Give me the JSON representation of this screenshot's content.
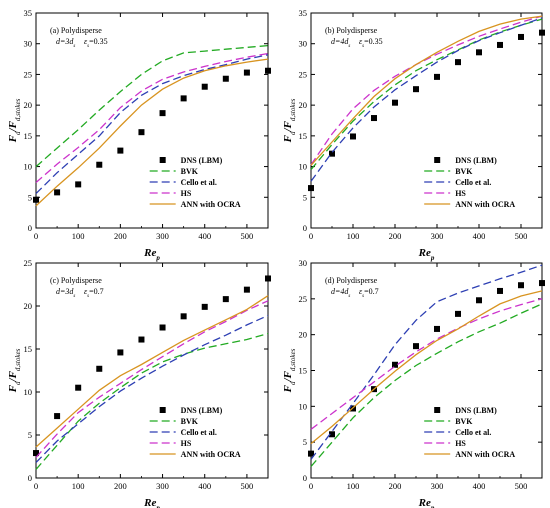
{
  "figure": {
    "ylabel_main": "F",
    "ylabel_sub": "d",
    "ylabel_sep": "/",
    "ylabel_main2": "F",
    "ylabel_sub2": "d,stokes",
    "xlabel_main": "Re",
    "xlabel_sub": "p"
  },
  "chart_data": [
    {
      "type": "line",
      "panel_label": "(a) Polydisperse",
      "param1_pre": "d=3d",
      "param1_sub": "s",
      "param2_pre": "ε",
      "param2_sub": "s",
      "param2_post": "=0.35",
      "xlim": [
        0,
        550
      ],
      "ylim": [
        0,
        35
      ],
      "xticks": [
        0,
        100,
        200,
        300,
        400,
        500
      ],
      "yticks": [
        0,
        5,
        10,
        15,
        20,
        25,
        30,
        35
      ],
      "legend_position": "bottom-right",
      "series": [
        {
          "name": "DNS (LBM)",
          "kind": "scatter",
          "color": "#000000",
          "x": [
            0,
            50,
            100,
            150,
            200,
            250,
            300,
            350,
            400,
            450,
            500,
            550
          ],
          "y": [
            4.6,
            5.8,
            7.1,
            10.3,
            12.6,
            15.6,
            18.7,
            21.1,
            23.0,
            24.3,
            25.3,
            25.6
          ]
        },
        {
          "name": "BVK",
          "kind": "line",
          "color": "#22aa22",
          "dash": "8,4",
          "x": [
            0,
            50,
            100,
            150,
            200,
            250,
            300,
            350,
            400,
            450,
            500,
            550
          ],
          "y": [
            10.0,
            13.0,
            16.0,
            19.2,
            22.2,
            25.0,
            27.2,
            28.5,
            28.8,
            29.1,
            29.4,
            29.7
          ]
        },
        {
          "name": "Cello et al.",
          "kind": "line",
          "color": "#2d3fb3",
          "dash": "8,4",
          "x": [
            0,
            50,
            100,
            150,
            200,
            250,
            300,
            350,
            400,
            450,
            500,
            550
          ],
          "y": [
            5.6,
            9.0,
            12.0,
            15.0,
            18.8,
            21.6,
            23.5,
            24.8,
            25.8,
            26.6,
            27.5,
            28.2
          ]
        },
        {
          "name": "HS",
          "kind": "line",
          "color": "#cc33cc",
          "dash": "8,4",
          "x": [
            0,
            50,
            100,
            150,
            200,
            250,
            300,
            350,
            400,
            450,
            500,
            550
          ],
          "y": [
            7.4,
            10.4,
            13.1,
            16.0,
            19.6,
            22.3,
            24.2,
            25.4,
            26.3,
            27.1,
            27.8,
            28.4
          ]
        },
        {
          "name": "ANN with OCRA",
          "kind": "line",
          "color": "#d89420",
          "dash": "",
          "x": [
            0,
            50,
            100,
            150,
            200,
            250,
            300,
            350,
            400,
            450,
            500,
            550
          ],
          "y": [
            3.6,
            6.8,
            9.8,
            13.0,
            16.6,
            20.0,
            22.6,
            24.4,
            25.6,
            26.4,
            27.0,
            27.5
          ]
        }
      ]
    },
    {
      "type": "line",
      "panel_label": "(b) Polydisperse",
      "param1_pre": "d=4d",
      "param1_sub": "s",
      "param2_pre": "ε",
      "param2_sub": "s",
      "param2_post": "=0.35",
      "xlim": [
        0,
        550
      ],
      "ylim": [
        0,
        35
      ],
      "xticks": [
        0,
        100,
        200,
        300,
        400,
        500
      ],
      "yticks": [
        0,
        5,
        10,
        15,
        20,
        25,
        30,
        35
      ],
      "legend_position": "bottom-right",
      "series": [
        {
          "name": "DNS (LBM)",
          "kind": "scatter",
          "color": "#000000",
          "x": [
            0,
            50,
            100,
            150,
            200,
            250,
            300,
            350,
            400,
            450,
            500,
            550
          ],
          "y": [
            6.5,
            12.1,
            14.9,
            17.9,
            20.4,
            22.6,
            24.6,
            27.0,
            28.6,
            29.8,
            31.1,
            31.8
          ]
        },
        {
          "name": "BVK",
          "kind": "line",
          "color": "#22aa22",
          "dash": "8,4",
          "x": [
            0,
            50,
            100,
            150,
            200,
            250,
            300,
            350,
            400,
            450,
            500,
            550
          ],
          "y": [
            9.5,
            13.6,
            17.4,
            20.6,
            23.3,
            25.6,
            27.4,
            29.0,
            30.6,
            31.9,
            33.0,
            34.0
          ]
        },
        {
          "name": "Cello et al.",
          "kind": "line",
          "color": "#2d3fb3",
          "dash": "8,4",
          "x": [
            0,
            50,
            100,
            150,
            200,
            250,
            300,
            350,
            400,
            450,
            500,
            550
          ],
          "y": [
            7.6,
            12.3,
            16.3,
            19.7,
            22.5,
            24.8,
            27.0,
            28.9,
            30.5,
            31.8,
            33.0,
            34.2
          ]
        },
        {
          "name": "HS",
          "kind": "line",
          "color": "#cc33cc",
          "dash": "8,4",
          "x": [
            0,
            50,
            100,
            150,
            200,
            250,
            300,
            350,
            400,
            450,
            500,
            550
          ],
          "y": [
            10.3,
            15.3,
            19.4,
            22.4,
            24.7,
            26.6,
            28.3,
            29.8,
            31.2,
            32.4,
            33.5,
            34.5
          ]
        },
        {
          "name": "ANN with OCRA",
          "kind": "line",
          "color": "#d89420",
          "dash": "",
          "x": [
            0,
            50,
            100,
            150,
            200,
            250,
            300,
            350,
            400,
            450,
            500,
            550
          ],
          "y": [
            10.2,
            14.0,
            17.8,
            21.4,
            24.3,
            26.6,
            28.6,
            30.4,
            32.0,
            33.2,
            34.0,
            34.5
          ]
        }
      ]
    },
    {
      "type": "line",
      "panel_label": "(c) Polydisperse",
      "param1_pre": "d=3d",
      "param1_sub": "s",
      "param2_pre": "ε",
      "param2_sub": "s",
      "param2_post": "=0.7",
      "xlim": [
        0,
        550
      ],
      "ylim": [
        0,
        25
      ],
      "xticks": [
        0,
        100,
        200,
        300,
        400,
        500
      ],
      "yticks": [
        0,
        5,
        10,
        15,
        20,
        25
      ],
      "legend_position": "bottom-right",
      "series": [
        {
          "name": "DNS (LBM)",
          "kind": "scatter",
          "color": "#000000",
          "x": [
            0,
            50,
            100,
            150,
            200,
            250,
            300,
            350,
            400,
            450,
            500,
            550
          ],
          "y": [
            2.9,
            7.2,
            10.5,
            12.7,
            14.6,
            16.1,
            17.5,
            18.8,
            19.9,
            20.8,
            21.9,
            23.2
          ]
        },
        {
          "name": "BVK",
          "kind": "line",
          "color": "#22aa22",
          "dash": "8,4",
          "x": [
            0,
            50,
            100,
            150,
            200,
            250,
            300,
            350,
            400,
            450,
            500,
            550
          ],
          "y": [
            1.0,
            3.8,
            6.6,
            8.7,
            10.5,
            12.2,
            13.5,
            14.4,
            15.1,
            15.6,
            16.1,
            16.8
          ]
        },
        {
          "name": "Cello et al.",
          "kind": "line",
          "color": "#2d3fb3",
          "dash": "8,4",
          "x": [
            0,
            50,
            100,
            150,
            200,
            250,
            300,
            350,
            400,
            450,
            500,
            550
          ],
          "y": [
            1.8,
            4.3,
            6.3,
            8.3,
            10.1,
            11.6,
            13.0,
            14.3,
            15.5,
            16.6,
            17.8,
            18.9
          ]
        },
        {
          "name": "HS",
          "kind": "line",
          "color": "#cc33cc",
          "dash": "8,4",
          "x": [
            0,
            50,
            100,
            150,
            200,
            250,
            300,
            350,
            400,
            450,
            500,
            550
          ],
          "y": [
            2.4,
            5.1,
            7.6,
            9.4,
            11.0,
            12.6,
            14.1,
            15.6,
            17.0,
            18.2,
            19.5,
            20.6
          ]
        },
        {
          "name": "ANN with OCRA",
          "kind": "line",
          "color": "#d89420",
          "dash": "",
          "x": [
            0,
            50,
            100,
            150,
            200,
            250,
            300,
            350,
            400,
            450,
            500,
            550
          ],
          "y": [
            3.6,
            5.8,
            8.0,
            10.2,
            11.9,
            13.2,
            14.6,
            16.0,
            17.2,
            18.4,
            19.6,
            21.2
          ]
        }
      ]
    },
    {
      "type": "line",
      "panel_label": "(d) Polydisperse",
      "param1_pre": "d=4d",
      "param1_sub": "s",
      "param2_pre": "ε",
      "param2_sub": "s",
      "param2_post": "=0.7",
      "xlim": [
        0,
        550
      ],
      "ylim": [
        0,
        30
      ],
      "xticks": [
        0,
        100,
        200,
        300,
        400,
        500
      ],
      "yticks": [
        0,
        5,
        10,
        15,
        20,
        25,
        30
      ],
      "legend_position": "bottom-right",
      "series": [
        {
          "name": "DNS (LBM)",
          "kind": "scatter",
          "color": "#000000",
          "x": [
            0,
            50,
            100,
            150,
            200,
            250,
            300,
            350,
            400,
            450,
            500,
            550
          ],
          "y": [
            3.4,
            6.1,
            9.7,
            12.4,
            15.8,
            18.4,
            20.8,
            22.9,
            24.8,
            26.1,
            26.9,
            27.2
          ]
        },
        {
          "name": "BVK",
          "kind": "line",
          "color": "#22aa22",
          "dash": "8,4",
          "x": [
            0,
            50,
            100,
            150,
            200,
            250,
            300,
            350,
            400,
            450,
            500,
            550
          ],
          "y": [
            1.6,
            5.0,
            8.4,
            11.2,
            13.6,
            15.7,
            17.4,
            19.0,
            20.4,
            21.6,
            23.0,
            24.3
          ]
        },
        {
          "name": "Cello et al.",
          "kind": "line",
          "color": "#2d3fb3",
          "dash": "8,4",
          "x": [
            0,
            50,
            100,
            150,
            200,
            250,
            300,
            350,
            400,
            450,
            500,
            550
          ],
          "y": [
            2.6,
            6.5,
            10.4,
            14.4,
            18.6,
            22.0,
            24.6,
            25.8,
            26.8,
            27.8,
            28.7,
            29.7
          ]
        },
        {
          "name": "HS",
          "kind": "line",
          "color": "#cc33cc",
          "dash": "8,4",
          "x": [
            0,
            50,
            100,
            150,
            200,
            250,
            300,
            350,
            400,
            450,
            500,
            550
          ],
          "y": [
            6.8,
            9.0,
            11.2,
            13.4,
            15.6,
            17.6,
            19.4,
            20.9,
            22.2,
            23.3,
            24.2,
            25.0
          ]
        },
        {
          "name": "ANN with OCRA",
          "kind": "line",
          "color": "#d89420",
          "dash": "",
          "x": [
            0,
            50,
            100,
            150,
            200,
            250,
            300,
            350,
            400,
            450,
            500,
            550
          ],
          "y": [
            4.8,
            7.2,
            9.8,
            12.4,
            14.9,
            17.2,
            19.2,
            20.8,
            22.6,
            24.3,
            25.4,
            26.1
          ]
        }
      ]
    }
  ]
}
